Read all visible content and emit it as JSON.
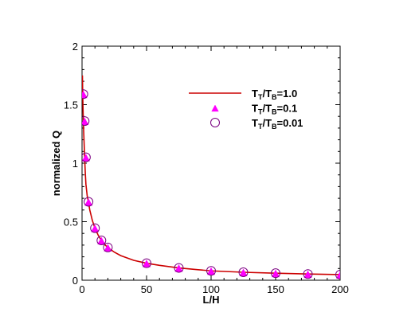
{
  "chart_data": {
    "type": "line",
    "xlabel": "L/H",
    "ylabel": "normalized Q",
    "xlim": [
      0,
      200
    ],
    "ylim": [
      0,
      2
    ],
    "x_ticks": [
      0,
      50,
      100,
      150,
      200
    ],
    "y_ticks": [
      0,
      0.5,
      1,
      1.5,
      2
    ],
    "y_tick_labels": [
      "0",
      "0.5",
      "1",
      "1.5",
      "2"
    ],
    "grid": false,
    "legend_position": "top-right",
    "series": [
      {
        "legend": {
          "base": "T",
          "sub1": "T",
          "mid": "/T",
          "sub2": "B",
          "tail": "=1.0"
        },
        "marker": "line",
        "color": "#cc0000",
        "x": [
          0.3,
          0.5,
          0.75,
          1,
          1.5,
          2,
          2.5,
          3,
          4,
          5,
          6,
          8,
          10,
          12.5,
          15,
          17.5,
          20,
          25,
          30,
          40,
          50,
          60,
          75,
          90,
          100,
          125,
          150,
          175,
          200
        ],
        "y": [
          1.75,
          1.6,
          1.47,
          1.36,
          1.2,
          1.05,
          0.92,
          0.82,
          0.72,
          0.665,
          0.6,
          0.51,
          0.445,
          0.385,
          0.34,
          0.305,
          0.28,
          0.24,
          0.21,
          0.17,
          0.145,
          0.127,
          0.105,
          0.09,
          0.08,
          0.068,
          0.06,
          0.053,
          0.048
        ]
      },
      {
        "legend": {
          "base": "T",
          "sub1": "T",
          "mid": "/T",
          "sub2": "B",
          "tail": "=0.1"
        },
        "marker": "triangle",
        "color": "#ff00ff",
        "x": [
          1,
          2,
          3,
          5,
          10,
          15,
          20,
          50,
          75,
          100,
          125,
          150,
          175,
          200
        ],
        "y": [
          1.59,
          1.36,
          1.05,
          0.67,
          0.445,
          0.34,
          0.28,
          0.145,
          0.105,
          0.08,
          0.068,
          0.06,
          0.053,
          0.048
        ]
      },
      {
        "legend": {
          "base": "T",
          "sub1": "T",
          "mid": "/T",
          "sub2": "B",
          "tail": "=0.01"
        },
        "marker": "open-circle",
        "color": "#7a0080",
        "x": [
          1,
          2,
          3,
          5,
          10,
          15,
          20,
          50,
          75,
          100,
          125,
          150,
          175,
          200
        ],
        "y": [
          1.59,
          1.36,
          1.05,
          0.67,
          0.445,
          0.34,
          0.28,
          0.145,
          0.105,
          0.08,
          0.068,
          0.06,
          0.053,
          0.048
        ]
      }
    ]
  }
}
